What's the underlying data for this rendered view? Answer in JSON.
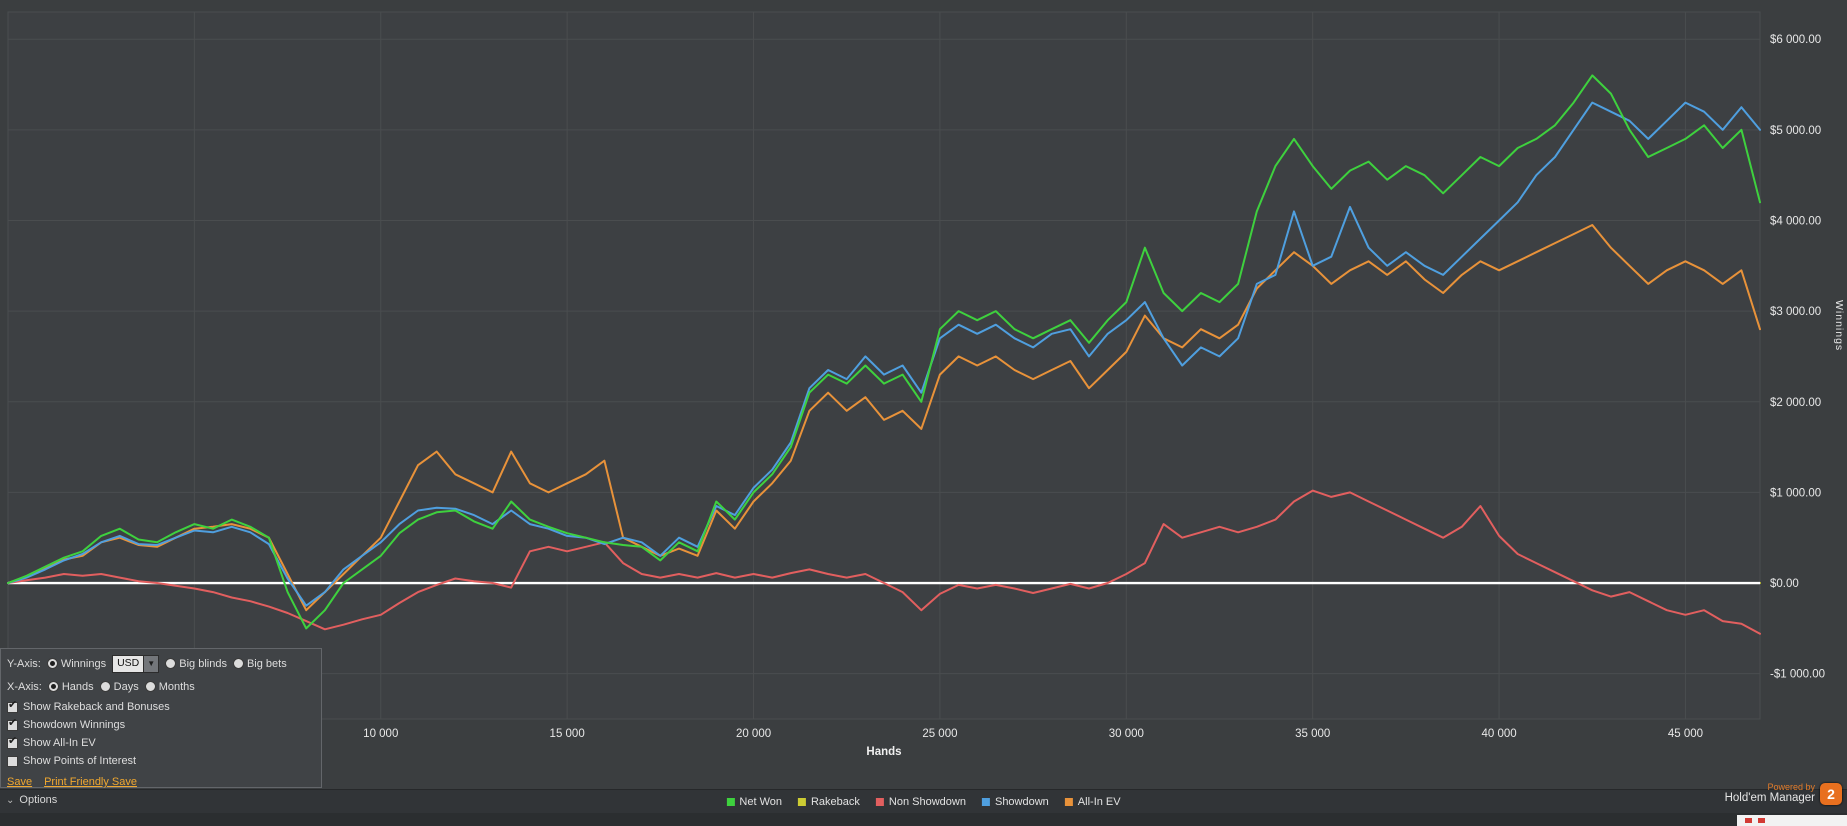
{
  "colors": {
    "background": "#3b3e40",
    "plot_background": "#3d4043",
    "grid": "#4a4d4f",
    "axis_text": "#e8e8e8",
    "zero_line": "#ffffff",
    "accent_orange": "#e8701f",
    "link": "#f0a830"
  },
  "chart_data": {
    "type": "line",
    "title": "",
    "xlabel": "Hands",
    "ylabel": "Winnings",
    "xlim": [
      0,
      47000
    ],
    "ylim": [
      -1500,
      6300
    ],
    "x_start": 0,
    "x_step": 500,
    "grid_on": true,
    "legend_position": "bottom",
    "plot_bg": "#3d4043",
    "grid_color": "#4a4d4f",
    "zero_line_color": "#ffffff",
    "grid_x": [
      5000,
      10000,
      15000,
      20000,
      25000,
      30000,
      35000,
      40000,
      45000
    ],
    "x_ticks": [
      {
        "value": 10000,
        "label": "10 000"
      },
      {
        "value": 15000,
        "label": "15 000"
      },
      {
        "value": 20000,
        "label": "20 000"
      },
      {
        "value": 25000,
        "label": "25 000"
      },
      {
        "value": 30000,
        "label": "30 000"
      },
      {
        "value": 35000,
        "label": "35 000"
      },
      {
        "value": 40000,
        "label": "40 000"
      },
      {
        "value": 45000,
        "label": "45 000"
      }
    ],
    "y_ticks": [
      {
        "value": 6000,
        "label": "$6 000.00"
      },
      {
        "value": 5000,
        "label": "$5 000.00"
      },
      {
        "value": 4000,
        "label": "$4 000.00"
      },
      {
        "value": 3000,
        "label": "$3 000.00"
      },
      {
        "value": 2000,
        "label": "$2 000.00"
      },
      {
        "value": 1000,
        "label": "$1 000.00"
      },
      {
        "value": 0,
        "label": "$0.00"
      },
      {
        "value": -1000,
        "label": "-$1 000.00"
      }
    ],
    "series": [
      {
        "name": "Rakeback",
        "color": "#cccc33",
        "under_zero_line": true,
        "x": [
          0,
          47000
        ],
        "values": [
          0,
          0
        ]
      },
      {
        "name": "Non Showdown",
        "color": "#e25f5f",
        "values": [
          0,
          30,
          60,
          100,
          80,
          100,
          60,
          20,
          0,
          -30,
          -60,
          -100,
          -160,
          -200,
          -260,
          -330,
          -420,
          -510,
          -460,
          -400,
          -350,
          -220,
          -100,
          -20,
          50,
          20,
          0,
          -50,
          350,
          400,
          350,
          400,
          450,
          220,
          100,
          60,
          100,
          60,
          110,
          60,
          100,
          60,
          110,
          150,
          100,
          60,
          100,
          0,
          -100,
          -300,
          -120,
          -20,
          -60,
          -20,
          -60,
          -110,
          -60,
          -10,
          -60,
          0,
          100,
          220,
          650,
          500,
          560,
          620,
          560,
          620,
          700,
          900,
          1020,
          950,
          1000,
          900,
          800,
          700,
          600,
          500,
          620,
          850,
          520,
          320,
          220,
          120,
          20,
          -80,
          -150,
          -100,
          -200,
          -300,
          -350,
          -300,
          -420,
          -450,
          -560
        ]
      },
      {
        "name": "All-In EV",
        "color": "#e8923a",
        "values": [
          0,
          70,
          160,
          260,
          300,
          450,
          500,
          420,
          400,
          500,
          600,
          620,
          650,
          600,
          500,
          100,
          -300,
          -100,
          100,
          300,
          500,
          900,
          1300,
          1450,
          1200,
          1100,
          1000,
          1450,
          1100,
          1000,
          1100,
          1200,
          1350,
          500,
          400,
          300,
          380,
          300,
          800,
          600,
          900,
          1100,
          1350,
          1900,
          2100,
          1900,
          2050,
          1800,
          1900,
          1700,
          2300,
          2500,
          2400,
          2500,
          2350,
          2250,
          2350,
          2450,
          2150,
          2350,
          2550,
          2950,
          2700,
          2600,
          2800,
          2700,
          2850,
          3250,
          3450,
          3650,
          3500,
          3300,
          3450,
          3550,
          3400,
          3550,
          3350,
          3200,
          3400,
          3550,
          3450,
          3550,
          3650,
          3750,
          3850,
          3950,
          3700,
          3500,
          3300,
          3450,
          3550,
          3450,
          3300,
          3450,
          2800
        ]
      },
      {
        "name": "Showdown",
        "color": "#4f9fdf",
        "values": [
          0,
          60,
          150,
          250,
          320,
          450,
          520,
          430,
          420,
          500,
          580,
          560,
          620,
          560,
          430,
          50,
          -250,
          -100,
          150,
          300,
          450,
          650,
          800,
          830,
          820,
          750,
          650,
          800,
          650,
          600,
          520,
          500,
          430,
          500,
          450,
          300,
          500,
          400,
          850,
          750,
          1050,
          1250,
          1550,
          2150,
          2350,
          2250,
          2500,
          2300,
          2400,
          2100,
          2700,
          2850,
          2750,
          2850,
          2700,
          2600,
          2750,
          2800,
          2500,
          2750,
          2900,
          3100,
          2700,
          2400,
          2600,
          2500,
          2700,
          3300,
          3400,
          4100,
          3500,
          3600,
          4150,
          3700,
          3500,
          3650,
          3500,
          3400,
          3600,
          3800,
          4000,
          4200,
          4500,
          4700,
          5000,
          5300,
          5200,
          5100,
          4900,
          5100,
          5300,
          5200,
          5000,
          5250,
          5000
        ]
      },
      {
        "name": "Net Won",
        "color": "#3ed13e",
        "values": [
          0,
          80,
          180,
          280,
          350,
          520,
          600,
          480,
          450,
          560,
          650,
          600,
          700,
          620,
          500,
          -100,
          -500,
          -300,
          0,
          150,
          300,
          550,
          700,
          780,
          800,
          680,
          600,
          900,
          700,
          620,
          550,
          500,
          450,
          420,
          400,
          250,
          450,
          350,
          900,
          700,
          1000,
          1200,
          1500,
          2100,
          2300,
          2200,
          2400,
          2200,
          2300,
          2000,
          2800,
          3000,
          2900,
          3000,
          2800,
          2700,
          2800,
          2900,
          2650,
          2900,
          3100,
          3700,
          3200,
          3000,
          3200,
          3100,
          3300,
          4100,
          4600,
          4900,
          4600,
          4350,
          4550,
          4650,
          4450,
          4600,
          4500,
          4300,
          4500,
          4700,
          4600,
          4800,
          4900,
          5050,
          5300,
          5600,
          5400,
          5000,
          4700,
          4800,
          4900,
          5050,
          4800,
          5000,
          4200
        ]
      }
    ]
  },
  "legend": {
    "items": [
      {
        "label": "Net Won",
        "color": "#3ed13e"
      },
      {
        "label": "Rakeback",
        "color": "#cccc33"
      },
      {
        "label": "Non Showdown",
        "color": "#e25f5f"
      },
      {
        "label": "Showdown",
        "color": "#4f9fdf"
      },
      {
        "label": "All-In EV",
        "color": "#e8923a"
      }
    ]
  },
  "options_panel": {
    "y_axis_label": "Y-Axis:",
    "y_axis_options": [
      {
        "label": "Winnings",
        "selected": true
      },
      {
        "label": "Big blinds",
        "selected": false
      },
      {
        "label": "Big bets",
        "selected": false
      }
    ],
    "currency": "USD",
    "x_axis_label": "X-Axis:",
    "x_axis_options": [
      {
        "label": "Hands",
        "selected": true
      },
      {
        "label": "Days",
        "selected": false
      },
      {
        "label": "Months",
        "selected": false
      }
    ],
    "checkboxes": [
      {
        "label": "Show Rakeback and Bonuses",
        "checked": true
      },
      {
        "label": "Showdown Winnings",
        "checked": true
      },
      {
        "label": "Show All-In EV",
        "checked": true
      },
      {
        "label": "Show Points of Interest",
        "checked": false
      }
    ],
    "links": [
      {
        "label": "Save"
      },
      {
        "label": "Print Friendly Save"
      }
    ]
  },
  "bottom_bar": {
    "options_label": "Options",
    "chevron": "⌄"
  },
  "footer": {
    "powered_by": "Powered by",
    "app_name": "Hold'em Manager",
    "logo_text": "2"
  }
}
